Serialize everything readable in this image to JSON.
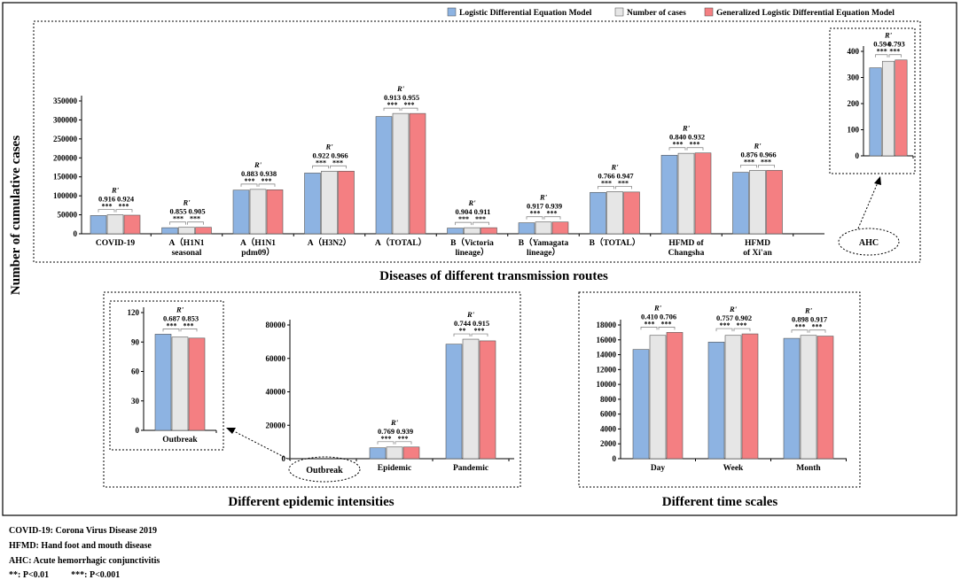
{
  "legend": [
    {
      "label": "Logistic Differential Equation Model",
      "color": "#8db3e2"
    },
    {
      "label": "Number of cases",
      "color": "#e6e6e6"
    },
    {
      "label": "Generalized Logistic Differential Equation Model",
      "color": "#f47f82"
    }
  ],
  "y_axis_label": "Number of cumulative cases",
  "r_symbol": "R'",
  "panel_titles": {
    "routes": "Diseases of different transmission routes",
    "intensities": "Different epidemic intensities",
    "time": "Different time scales"
  },
  "outlined_labels": {
    "ahc": "AHC",
    "outbreak": "Outbreak"
  },
  "footnotes": [
    "COVID-19: Corona Virus Disease 2019",
    "HFMD: Hand foot and mouth disease",
    "AHC: Acute hemorrhagic conjunctivitis",
    "**: P<0.01          ***: P<0.001"
  ],
  "chart_data": [
    {
      "id": "routes",
      "type": "bar",
      "title": "Diseases of different transmission routes",
      "ylim": [
        0,
        350000
      ],
      "yticks": [
        0,
        50000,
        100000,
        150000,
        200000,
        250000,
        300000,
        350000
      ],
      "categories": [
        [
          "COVID-19"
        ],
        [
          "A（H1N1",
          "seasonal"
        ],
        [
          "A（H1N1",
          "pdm09）"
        ],
        [
          "A（H3N2）"
        ],
        [
          "A（TOTAL）"
        ],
        [
          "B（Victoria",
          "lineage）"
        ],
        [
          "B（Yamagata",
          "lineage）"
        ],
        [
          "B（TOTAL）"
        ],
        [
          "HFMD of",
          "Changsha"
        ],
        [
          "HFMD",
          "of Xi'an"
        ]
      ],
      "series": [
        {
          "name": "Logistic Differential Equation Model",
          "values": [
            48000,
            16000,
            115000,
            160000,
            309000,
            15000,
            29000,
            109000,
            207000,
            162000
          ]
        },
        {
          "name": "Number of cases",
          "values": [
            50000,
            17000,
            117000,
            165000,
            317000,
            16000,
            31000,
            111000,
            212000,
            167000
          ]
        },
        {
          "name": "Generalized Logistic Differential Equation Model",
          "values": [
            49000,
            17000,
            116000,
            165000,
            317000,
            16000,
            31000,
            110000,
            213000,
            167000
          ]
        }
      ],
      "r_values": [
        [
          "0.916",
          "0.924"
        ],
        [
          "0.855",
          "0.905"
        ],
        [
          "0.883",
          "0.938"
        ],
        [
          "0.922",
          "0.966"
        ],
        [
          "0.913",
          "0.955"
        ],
        [
          "0.904",
          "0.911"
        ],
        [
          "0.917",
          "0.939"
        ],
        [
          "0.766",
          "0.947"
        ],
        [
          "0.840",
          "0.932"
        ],
        [
          "0.876",
          "0.966"
        ]
      ],
      "significance": [
        [
          "***",
          "***"
        ],
        [
          "***",
          "***"
        ],
        [
          "***",
          "***"
        ],
        [
          "***",
          "***"
        ],
        [
          "***",
          "***"
        ],
        [
          "***",
          "***"
        ],
        [
          "***",
          "***"
        ],
        [
          "***",
          "***"
        ],
        [
          "***",
          "***"
        ],
        [
          "***",
          "***"
        ]
      ]
    },
    {
      "id": "ahc",
      "type": "bar",
      "ylim": [
        0,
        400
      ],
      "yticks": [
        0,
        100,
        200,
        300,
        400
      ],
      "categories": [
        [
          "AHC"
        ]
      ],
      "series": [
        {
          "name": "Logistic Differential Equation Model",
          "values": [
            337
          ]
        },
        {
          "name": "Number of cases",
          "values": [
            362
          ]
        },
        {
          "name": "Generalized Logistic Differential Equation Model",
          "values": [
            367
          ]
        }
      ],
      "r_values": [
        [
          "0.594",
          "0.793"
        ]
      ],
      "significance": [
        [
          "***",
          "***"
        ]
      ]
    },
    {
      "id": "outbreak",
      "type": "bar",
      "ylim": [
        0,
        120
      ],
      "yticks": [
        0,
        30,
        60,
        90,
        120
      ],
      "categories": [
        [
          "Outbreak"
        ]
      ],
      "series": [
        {
          "name": "Logistic Differential Equation Model",
          "values": [
            98
          ]
        },
        {
          "name": "Number of cases",
          "values": [
            95
          ]
        },
        {
          "name": "Generalized Logistic Differential Equation Model",
          "values": [
            94
          ]
        }
      ],
      "r_values": [
        [
          "0.687",
          "0.853"
        ]
      ],
      "significance": [
        [
          "***",
          "***"
        ]
      ]
    },
    {
      "id": "intensities",
      "type": "bar",
      "title": "Different epidemic intensities",
      "ylim": [
        0,
        80000
      ],
      "yticks": [
        0,
        20000,
        40000,
        60000,
        80000
      ],
      "categories": [
        [
          "Epidemic"
        ],
        [
          "Pandemic"
        ]
      ],
      "series": [
        {
          "name": "Logistic Differential Equation Model",
          "values": [
            6500,
            68500
          ]
        },
        {
          "name": "Number of cases",
          "values": [
            7000,
            71500
          ]
        },
        {
          "name": "Generalized Logistic Differential Equation Model",
          "values": [
            7000,
            70500
          ]
        }
      ],
      "r_values": [
        [
          "0.769",
          "0.939"
        ],
        [
          "0.744",
          "0.915"
        ]
      ],
      "significance": [
        [
          "***",
          "***"
        ],
        [
          "**",
          "***"
        ]
      ]
    },
    {
      "id": "time",
      "type": "bar",
      "title": "Different time scales",
      "ylim": [
        0,
        18000
      ],
      "yticks": [
        0,
        2000,
        4000,
        6000,
        8000,
        10000,
        12000,
        14000,
        16000,
        18000
      ],
      "categories": [
        [
          "Day"
        ],
        [
          "Week"
        ],
        [
          "Month"
        ]
      ],
      "series": [
        {
          "name": "Logistic Differential Equation Model",
          "values": [
            14700,
            15700,
            16200
          ]
        },
        {
          "name": "Number of cases",
          "values": [
            16600,
            16600,
            16600
          ]
        },
        {
          "name": "Generalized Logistic Differential Equation Model",
          "values": [
            17000,
            16800,
            16500
          ]
        }
      ],
      "r_values": [
        [
          "0.410",
          "0.706"
        ],
        [
          "0.757",
          "0.902"
        ],
        [
          "0.898",
          "0.917"
        ]
      ],
      "significance": [
        [
          "***",
          "***"
        ],
        [
          "***",
          "***"
        ],
        [
          "***",
          "***"
        ]
      ]
    }
  ]
}
